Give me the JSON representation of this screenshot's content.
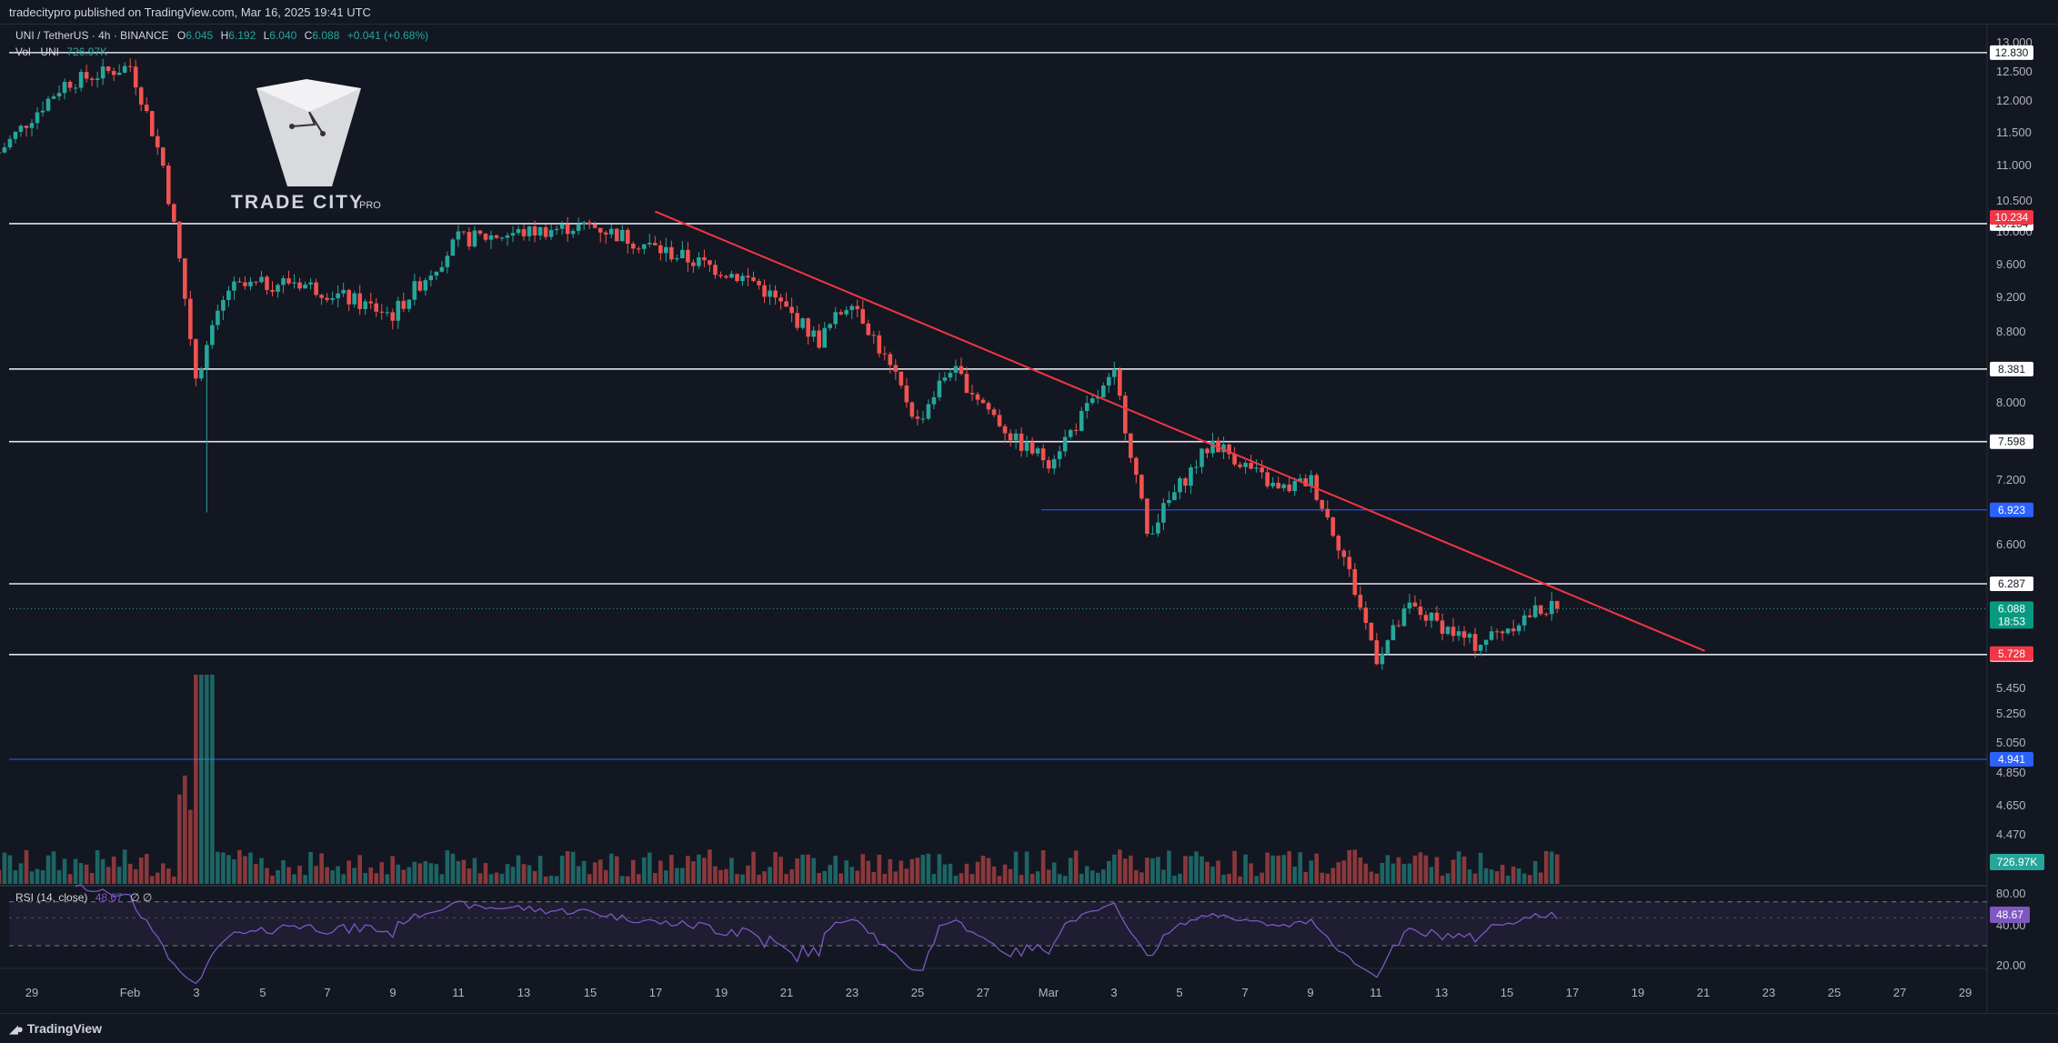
{
  "header": {
    "publisher": "tradecitypro published on TradingView.com, Mar 16, 2025 19:41 UTC"
  },
  "legend": {
    "symbol": "UNI / TetherUS · 4h · BINANCE",
    "o_label": "O",
    "o": "6.045",
    "h_label": "H",
    "h": "6.192",
    "l_label": "L",
    "l": "6.040",
    "c_label": "C",
    "c": "6.088",
    "change": "+0.041 (+0.68%)",
    "vol": "Vol · UNI",
    "vol_value": "726.97K"
  },
  "watermark": {
    "title": "TRADE CITY",
    "suffix": "PRO"
  },
  "rsi": {
    "label": "RSI (14, close)",
    "value": "48.67",
    "extra": "∅ ∅"
  },
  "footer": {
    "brand": "TradingView"
  },
  "colors": {
    "bg": "#131722",
    "up": "#26a69a",
    "down": "#ef5350",
    "trendline": "#f23645",
    "blue": "#2962ff",
    "rsi": "#7e57c2"
  },
  "chart_data": {
    "type": "candlestick",
    "price_axis": {
      "ticks": [
        "13.000",
        "12.500",
        "12.000",
        "11.500",
        "11.000",
        "10.500",
        "10.000",
        "9.600",
        "9.200",
        "8.800",
        "8.000",
        "7.200",
        "6.600",
        "5.450",
        "5.250",
        "5.050",
        "4.850",
        "4.650",
        "4.470"
      ],
      "min": 4.3,
      "max": 13.0
    },
    "rsi_axis": {
      "ticks": [
        "80.00",
        "40.00",
        "20.00"
      ]
    },
    "time_axis": [
      "29",
      "Feb",
      "3",
      "5",
      "7",
      "9",
      "11",
      "13",
      "15",
      "17",
      "19",
      "21",
      "23",
      "25",
      "27",
      "Mar",
      "3",
      "5",
      "7",
      "9",
      "11",
      "13",
      "15",
      "17",
      "19",
      "21",
      "23",
      "25",
      "27",
      "29"
    ],
    "horizontal_levels": [
      {
        "value": 12.83,
        "label": "12.830",
        "color": "white"
      },
      {
        "value": 10.134,
        "label": "10.134",
        "color": "white"
      },
      {
        "value": 8.381,
        "label": "8.381",
        "color": "white"
      },
      {
        "value": 7.598,
        "label": "7.598",
        "color": "white"
      },
      {
        "value": 6.287,
        "label": "6.287",
        "color": "white"
      },
      {
        "value": 5.721,
        "label": "5.721",
        "color": "white"
      },
      {
        "value": 6.923,
        "label": "6.923",
        "color": "blue"
      },
      {
        "value": 4.941,
        "label": "4.941",
        "color": "blue"
      }
    ],
    "price_tags": [
      {
        "value": 10.234,
        "label": "10.234",
        "color": "red"
      },
      {
        "value": 6.088,
        "label": "6.088",
        "sub": "18:53",
        "color": "green"
      },
      {
        "value": 5.728,
        "label": "5.728",
        "color": "red"
      }
    ],
    "trendline": {
      "from": {
        "date": "Feb 17",
        "price": 10.33
      },
      "to": {
        "date": "Mar 21",
        "price": 5.75
      }
    },
    "closes_key_points": [
      {
        "date": "Jan 28",
        "price": 11.2
      },
      {
        "date": "Jan 30",
        "price": 12.3
      },
      {
        "date": "Feb 1",
        "price": 12.6
      },
      {
        "date": "Feb 2",
        "price": 11.0
      },
      {
        "date": "Feb 3",
        "price": 8.3
      },
      {
        "date": "Feb 4",
        "price": 9.3
      },
      {
        "date": "Feb 6",
        "price": 9.4
      },
      {
        "date": "Feb 9",
        "price": 9.0
      },
      {
        "date": "Feb 11",
        "price": 9.9
      },
      {
        "date": "Feb 15",
        "price": 10.1
      },
      {
        "date": "Feb 17",
        "price": 9.8
      },
      {
        "date": "Feb 20",
        "price": 9.4
      },
      {
        "date": "Feb 22",
        "price": 8.7
      },
      {
        "date": "Feb 23",
        "price": 9.2
      },
      {
        "date": "Feb 25",
        "price": 7.8
      },
      {
        "date": "Feb 26",
        "price": 8.4
      },
      {
        "date": "Feb 28",
        "price": 7.6
      },
      {
        "date": "Mar 1",
        "price": 7.4
      },
      {
        "date": "Mar 3",
        "price": 8.3
      },
      {
        "date": "Mar 4",
        "price": 6.7
      },
      {
        "date": "Mar 6",
        "price": 7.6
      },
      {
        "date": "Mar 8",
        "price": 7.1
      },
      {
        "date": "Mar 9",
        "price": 7.2
      },
      {
        "date": "Mar 10",
        "price": 6.5
      },
      {
        "date": "Mar 11",
        "price": 5.7
      },
      {
        "date": "Mar 12",
        "price": 6.1
      },
      {
        "date": "Mar 14",
        "price": 5.8
      },
      {
        "date": "Mar 16",
        "price": 6.088
      }
    ]
  }
}
